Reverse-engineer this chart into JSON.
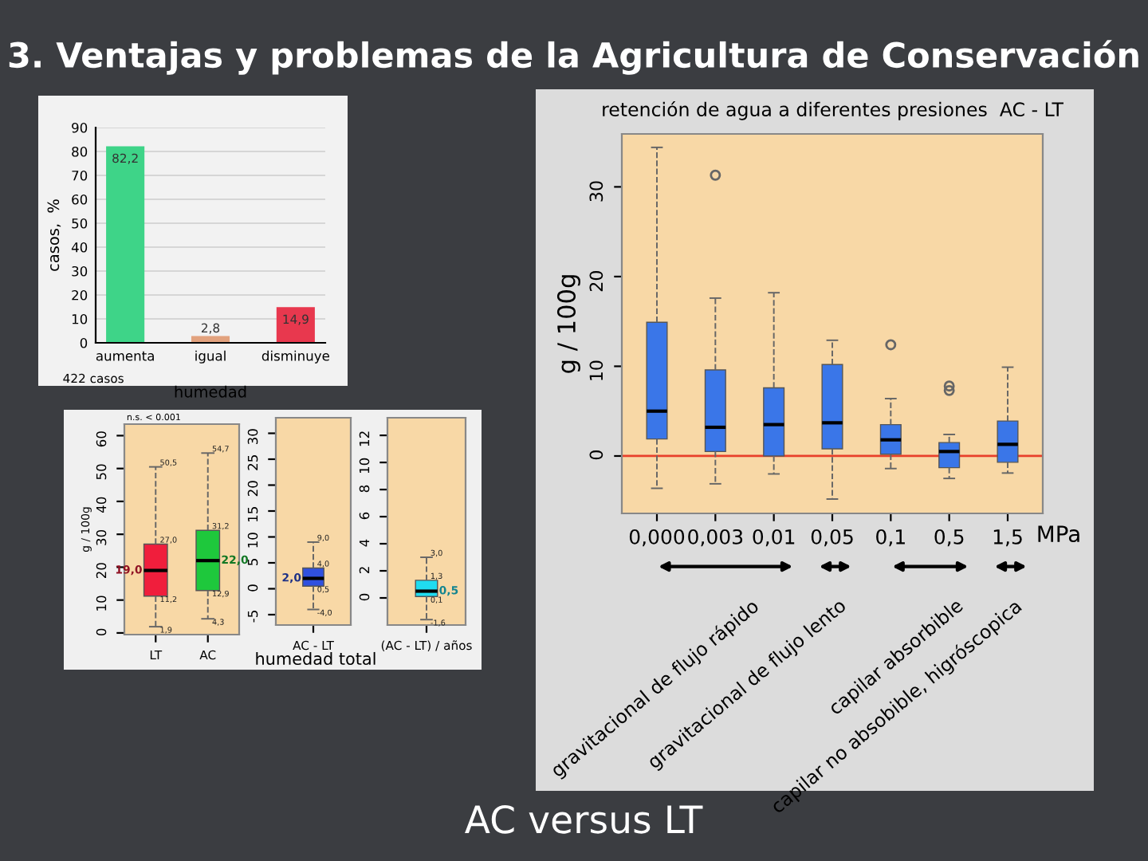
{
  "chart_data": [
    {
      "type": "other",
      "title": "3. Ventajas y problemas de la Agricultura de Conservación",
      "annotations": [
        "AC versus LT"
      ]
    },
    {
      "type": "bar",
      "categories": [
        "aumenta",
        "igual",
        "disminuye"
      ],
      "values": [
        82.2,
        2.8,
        14.9
      ],
      "colors": [
        "#3ed488",
        "#e2a27e",
        "#e8384e"
      ],
      "value_labels": [
        "82,2",
        "2,8",
        "14,9"
      ],
      "ylim": [
        0,
        90
      ],
      "yticks": [
        0,
        10,
        20,
        30,
        40,
        50,
        60,
        70,
        80,
        90
      ],
      "grid": "y",
      "ylabel": "casos,  %",
      "xlabel": "humedad",
      "annotations": [
        "422 casos"
      ]
    },
    {
      "type": "box",
      "categories": [
        "LT",
        "AC"
      ],
      "colors": [
        "#f01e3c",
        "#1ec83c"
      ],
      "ylim": [
        -0.5,
        63.5
      ],
      "yticks": [
        0,
        10,
        20,
        30,
        40,
        50,
        60
      ],
      "ylabel": "g / 100g",
      "annotations": [
        "n.s. < 0.001"
      ],
      "boxes": [
        {
          "low": 1.9,
          "q1": 11.2,
          "median": 19.0,
          "q3": 27.0,
          "high": 50.5
        },
        {
          "low": 4.3,
          "q1": 12.9,
          "median": 22.0,
          "q3": 31.2,
          "high": 54.7
        }
      ],
      "value_labels": [
        [
          "1,9",
          "11,2",
          "19,0",
          "27,0",
          "50,5"
        ],
        [
          "4,3",
          "12,9",
          "22,0",
          "31,2",
          "54,7"
        ]
      ]
    },
    {
      "type": "box",
      "categories": [
        "AC - LT"
      ],
      "colors": [
        "#3050e0"
      ],
      "ylim": [
        -7,
        33
      ],
      "yticks": [
        -5,
        0,
        5,
        10,
        15,
        20,
        25,
        30
      ],
      "xlabel": "humedad total",
      "boxes": [
        {
          "low": -4.0,
          "q1": 0.5,
          "median": 2.0,
          "q3": 4.0,
          "high": 9.0
        }
      ],
      "value_labels": [
        [
          "-4,0",
          "0,5",
          "2,0",
          "4,0",
          "9,0"
        ]
      ]
    },
    {
      "type": "box",
      "categories": [
        "(AC - LT) / años"
      ],
      "colors": [
        "#20dcf0"
      ],
      "ylim": [
        -2,
        13.3
      ],
      "yticks": [
        0,
        2,
        4,
        6,
        8,
        10,
        12
      ],
      "boxes": [
        {
          "low": -1.6,
          "q1": 0.1,
          "median": 0.5,
          "q3": 1.3,
          "high": 3.0
        }
      ],
      "value_labels": [
        [
          "-1,6",
          "0,1",
          "0,5",
          "1,3",
          "3,0"
        ]
      ]
    },
    {
      "type": "box",
      "title": "retención de agua a diferentes presiones  AC - LT",
      "ylabel": "g / 100g",
      "categories": [
        "0,000",
        "0,003",
        "0,01",
        "0,05",
        "0,1",
        "0,5",
        "1,5"
      ],
      "colors": [
        "#3a76e8",
        "#3a76e8",
        "#3a76e8",
        "#3a76e8",
        "#3a76e8",
        "#3a76e8",
        "#3a76e8"
      ],
      "ylim": [
        -6.4,
        35.9
      ],
      "yticks": [
        0,
        10,
        20,
        30
      ],
      "ref_lines": [
        {
          "axis": "y",
          "value": 0,
          "color": "#e8402a"
        }
      ],
      "boxes": [
        {
          "low": -3.6,
          "q1": 1.9,
          "median": 5.0,
          "q3": 14.9,
          "high": 34.4
        },
        {
          "low": -3.1,
          "q1": 0.5,
          "median": 3.2,
          "q3": 9.6,
          "high": 17.6,
          "outliers": [
            31.3
          ]
        },
        {
          "low": -2.0,
          "q1": 0.0,
          "median": 3.5,
          "q3": 7.6,
          "high": 18.2
        },
        {
          "low": -4.8,
          "q1": 0.8,
          "median": 3.7,
          "q3": 10.2,
          "high": 12.9
        },
        {
          "low": -1.4,
          "q1": 0.2,
          "median": 1.8,
          "q3": 3.5,
          "high": 6.4,
          "outliers": [
            12.4
          ]
        },
        {
          "low": -2.5,
          "q1": -1.3,
          "median": 0.5,
          "q3": 1.5,
          "high": 2.4,
          "outliers": [
            7.8,
            7.3
          ]
        },
        {
          "low": -1.9,
          "q1": -0.7,
          "median": 1.3,
          "q3": 3.9,
          "high": 9.9
        }
      ],
      "annotations": [
        "MPa",
        "gravitacional de flujo rápido",
        "gravitacional de flujo lento",
        "capilar absorbible",
        "capilar no absobible, higróscopica"
      ]
    }
  ]
}
